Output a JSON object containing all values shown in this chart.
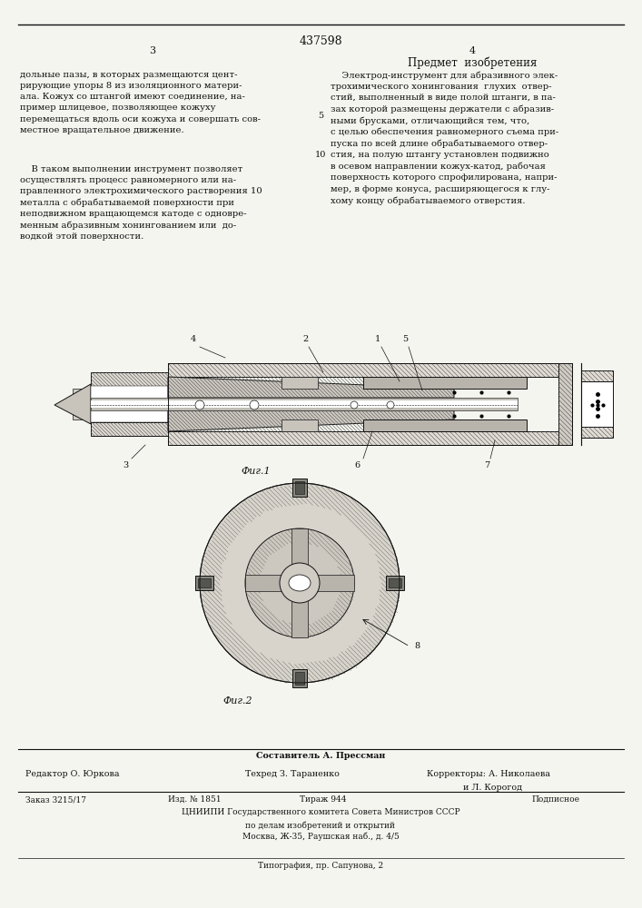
{
  "bg_color": "#f5f5f0",
  "page_width": 7.07,
  "page_height": 10.0,
  "patent_number": "437598",
  "col_left_number": "3",
  "col_right_number": "4",
  "right_header": "Предмет  изобретения",
  "left_col_text_p1": "дольные пазы, в которых размещаются цент-\nрирующие упоры 8 из изоляционного матери-\nала. Кожух со штангой имеют соединение, на-\nпример шлицевое, позволяющее кожуху\nперемещаться вдоль оси кожуха и совершать сов-\nместное вращательное движение.",
  "left_col_text_p2": "    В таком выполнении инструмент позволяет\nосуществлять процесс равномерного или на-\nправленного электрохимического растворения 10\nметалла с обрабатываемой поверхности при\nнеподвижном вращающемся катоде с одновре-\nменным абразивным хонингованием или  до-\nводкой этой поверхности.",
  "right_col_text": "    Электрод-инструмент для абразивного элек-\nтрохимического хонингования  глухих  отвер-\nстий, выполненный в виде полой штанги, в па-\nзах которой размещены держатели с абразив-\nными брусками, отличающийся тем, что,\nс целью обеспечения равномерного съема при-\nпуска по всей длине обрабатываемого отвер-\nстия, на полую штангу установлен подвижно\nв осевом направлении кожух-катод, рабочая\nповерхность которого спрофилирована, напри-\nмер, в форме конуса, расширяющегося к глу-\nхому концу обрабатываемого отверстия.",
  "line_number_5": "5",
  "line_number_10": "10",
  "fig1_label": "Фиг.1",
  "fig2_label": "Фиг.2",
  "footer_sestavitel": "Составитель А. Прессман",
  "footer_redaktor": "Редактор О. Юркова",
  "footer_tehred": "Техред З. Тараненко",
  "footer_korr": "Корректоры: А. Николаева",
  "footer_korr2": "и Л. Корогод",
  "footer_zakaz": "Заказ 3215/17",
  "footer_izd": "Изд. № 1851",
  "footer_tirazh": "Тираж 944",
  "footer_podpisnoe": "Подписное",
  "footer_cniipи": "ЦНИИПИ Государственного комитета Совета Министров СССР",
  "footer_po_delam": "по делам изобретений и открытий",
  "footer_moskva": "Москва, Ж-35, Раушская наб., д. 4/5",
  "footer_tipografia": "Типография, пр. Сапунова, 2",
  "hatch_color": "#888888",
  "line_color": "#111111",
  "fill_light": "#d8d8d0",
  "fill_med": "#b0a898",
  "fill_dark": "#888070"
}
